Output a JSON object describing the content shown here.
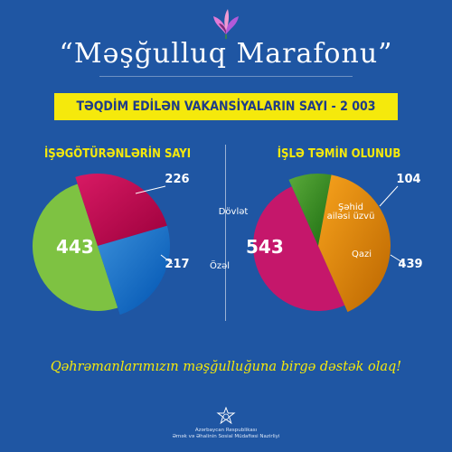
{
  "header": {
    "title": "“Məşğulluq Marafonu”",
    "banner": "TƏQDİM EDİLƏN VAKANSİYALARIN SAYI - 2 003"
  },
  "chart_data": [
    {
      "type": "pie",
      "title": "İŞƏGÖTÜRƏNLƏRİN SAYI",
      "slices": [
        {
          "label": "",
          "value": 443,
          "color": "#7ec242"
        },
        {
          "label": "Dövlət",
          "value": 226,
          "color": "#d81a64"
        },
        {
          "label": "Özəl",
          "value": 217,
          "color": "#3a8fd9"
        }
      ]
    },
    {
      "type": "pie",
      "title": "İŞLƏ TƏMİN OLUNUB",
      "slices": [
        {
          "label": "",
          "value": 543,
          "color": "#c5176b"
        },
        {
          "label": "Şəhid ailəsi üzvü",
          "value": 104,
          "color": "#5aaa3a"
        },
        {
          "label": "Qazi",
          "value": 439,
          "color": "#f7a21c"
        }
      ]
    }
  ],
  "slogan": "Qəhrəmanlarımızın məşğulluğuna birgə dəstək olaq!",
  "footer": {
    "line1": "Azərbaycan Respublikası",
    "line2": "Əmək və Əhalinin Sosial Müdafiəsi Nazirliyi"
  }
}
